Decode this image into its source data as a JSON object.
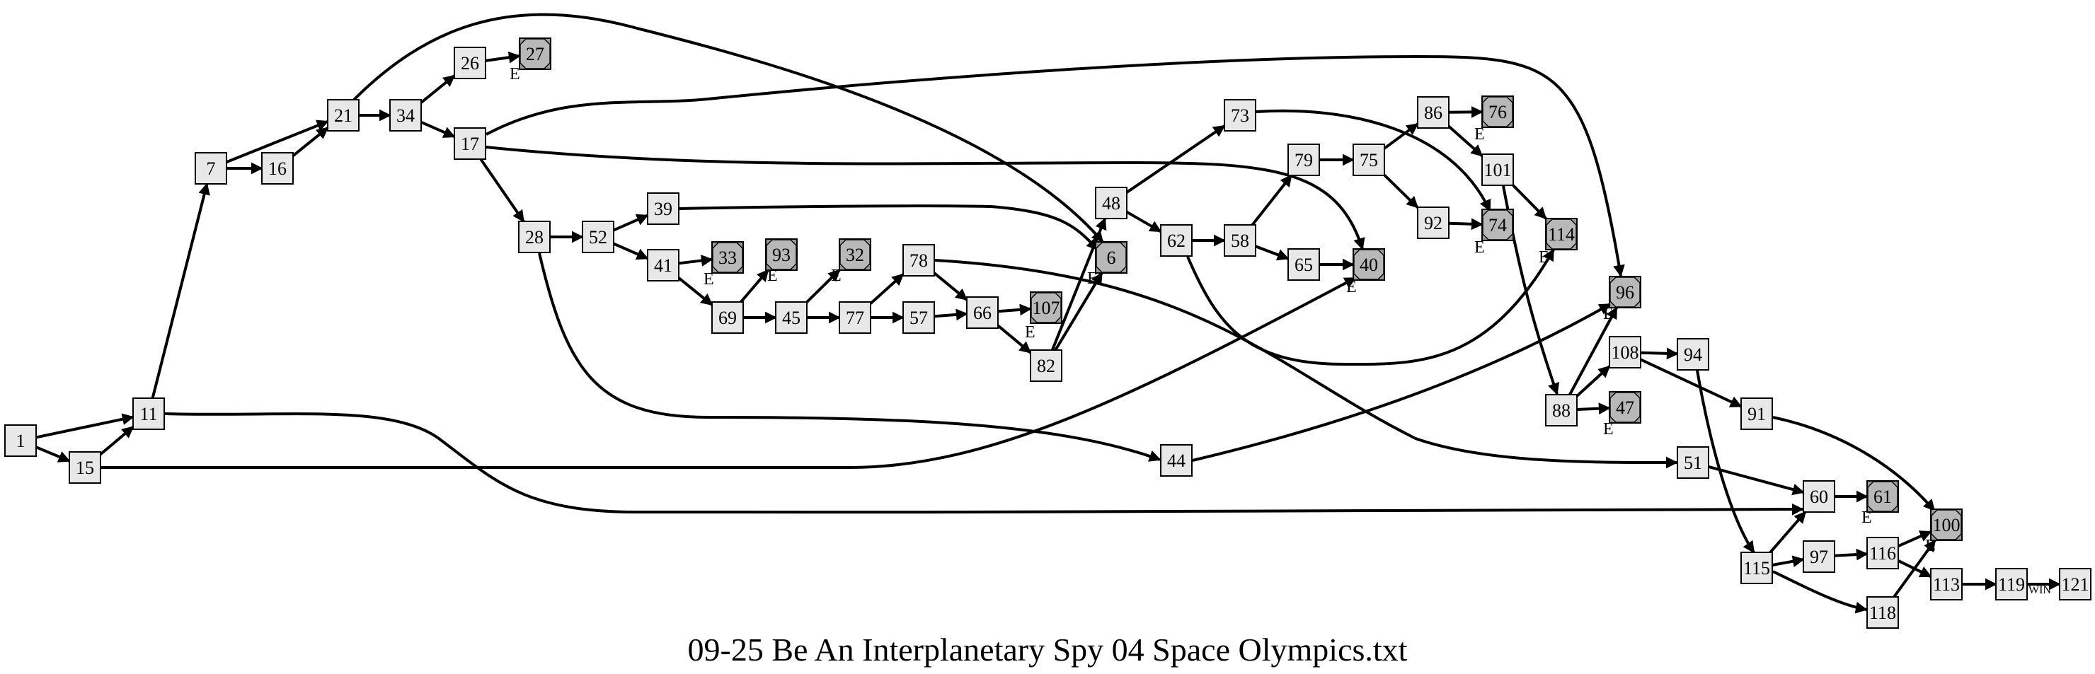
{
  "title": "09-25 Be An Interplanetary Spy 04 Space Olympics.txt",
  "colors": {
    "node_fill": "#e8e8e8",
    "end_fill": "#9a9a9a",
    "end_inner": "#b8b8b8",
    "line": "#000000"
  },
  "nodes": [
    {
      "id": "1",
      "type": "page"
    },
    {
      "id": "15",
      "type": "page"
    },
    {
      "id": "11",
      "type": "page"
    },
    {
      "id": "7",
      "type": "page"
    },
    {
      "id": "16",
      "type": "page"
    },
    {
      "id": "21",
      "type": "page"
    },
    {
      "id": "34",
      "type": "page"
    },
    {
      "id": "26",
      "type": "page"
    },
    {
      "id": "27",
      "type": "end",
      "tag": "E"
    },
    {
      "id": "17",
      "type": "page"
    },
    {
      "id": "28",
      "type": "page"
    },
    {
      "id": "52",
      "type": "page"
    },
    {
      "id": "39",
      "type": "page"
    },
    {
      "id": "41",
      "type": "page"
    },
    {
      "id": "33",
      "type": "end",
      "tag": "E"
    },
    {
      "id": "69",
      "type": "page"
    },
    {
      "id": "93",
      "type": "end",
      "tag": "E"
    },
    {
      "id": "45",
      "type": "page"
    },
    {
      "id": "32",
      "type": "end",
      "tag": "E"
    },
    {
      "id": "77",
      "type": "page"
    },
    {
      "id": "78",
      "type": "page"
    },
    {
      "id": "57",
      "type": "page"
    },
    {
      "id": "66",
      "type": "page"
    },
    {
      "id": "107",
      "type": "end",
      "tag": "E"
    },
    {
      "id": "82",
      "type": "page"
    },
    {
      "id": "6",
      "type": "end",
      "tag": "E"
    },
    {
      "id": "48",
      "type": "page"
    },
    {
      "id": "73",
      "type": "page"
    },
    {
      "id": "62",
      "type": "page"
    },
    {
      "id": "58",
      "type": "page"
    },
    {
      "id": "79",
      "type": "page"
    },
    {
      "id": "75",
      "type": "page"
    },
    {
      "id": "65",
      "type": "page"
    },
    {
      "id": "40",
      "type": "end",
      "tag": "E"
    },
    {
      "id": "86",
      "type": "page"
    },
    {
      "id": "76",
      "type": "end",
      "tag": "E"
    },
    {
      "id": "101",
      "type": "page"
    },
    {
      "id": "92",
      "type": "page"
    },
    {
      "id": "74",
      "type": "end",
      "tag": "E"
    },
    {
      "id": "114",
      "type": "end",
      "tag": "E"
    },
    {
      "id": "96",
      "type": "end",
      "tag": "E"
    },
    {
      "id": "88",
      "type": "page"
    },
    {
      "id": "108",
      "type": "page"
    },
    {
      "id": "47",
      "type": "end",
      "tag": "E"
    },
    {
      "id": "94",
      "type": "page"
    },
    {
      "id": "91",
      "type": "page"
    },
    {
      "id": "44",
      "type": "page"
    },
    {
      "id": "51",
      "type": "page"
    },
    {
      "id": "60",
      "type": "page"
    },
    {
      "id": "61",
      "type": "end",
      "tag": "E"
    },
    {
      "id": "100",
      "type": "end",
      "tag": "E"
    },
    {
      "id": "115",
      "type": "page"
    },
    {
      "id": "97",
      "type": "page"
    },
    {
      "id": "116",
      "type": "page"
    },
    {
      "id": "113",
      "type": "page"
    },
    {
      "id": "118",
      "type": "page"
    },
    {
      "id": "119",
      "type": "page",
      "tag": "WIN"
    },
    {
      "id": "121",
      "type": "page"
    }
  ],
  "edges": [
    [
      "1",
      "11"
    ],
    [
      "1",
      "15"
    ],
    [
      "15",
      "11"
    ],
    [
      "15",
      "40"
    ],
    [
      "11",
      "7"
    ],
    [
      "11",
      "60"
    ],
    [
      "7",
      "21"
    ],
    [
      "7",
      "16"
    ],
    [
      "16",
      "21"
    ],
    [
      "21",
      "34"
    ],
    [
      "21",
      "6"
    ],
    [
      "34",
      "26"
    ],
    [
      "34",
      "17"
    ],
    [
      "26",
      "27"
    ],
    [
      "17",
      "96"
    ],
    [
      "17",
      "40"
    ],
    [
      "17",
      "28"
    ],
    [
      "28",
      "52"
    ],
    [
      "28",
      "44"
    ],
    [
      "52",
      "39"
    ],
    [
      "52",
      "41"
    ],
    [
      "39",
      "6"
    ],
    [
      "41",
      "33"
    ],
    [
      "41",
      "69"
    ],
    [
      "69",
      "93"
    ],
    [
      "69",
      "45"
    ],
    [
      "45",
      "32"
    ],
    [
      "45",
      "77"
    ],
    [
      "77",
      "78"
    ],
    [
      "77",
      "57"
    ],
    [
      "78",
      "66"
    ],
    [
      "78",
      "51"
    ],
    [
      "57",
      "66"
    ],
    [
      "66",
      "107"
    ],
    [
      "66",
      "82"
    ],
    [
      "82",
      "48"
    ],
    [
      "82",
      "6"
    ],
    [
      "48",
      "73"
    ],
    [
      "48",
      "62"
    ],
    [
      "73",
      "74"
    ],
    [
      "62",
      "58"
    ],
    [
      "62",
      "114"
    ],
    [
      "58",
      "79"
    ],
    [
      "58",
      "65"
    ],
    [
      "79",
      "75"
    ],
    [
      "65",
      "40"
    ],
    [
      "75",
      "86"
    ],
    [
      "75",
      "92"
    ],
    [
      "86",
      "76"
    ],
    [
      "86",
      "101"
    ],
    [
      "92",
      "74"
    ],
    [
      "101",
      "114"
    ],
    [
      "101",
      "88"
    ],
    [
      "88",
      "96"
    ],
    [
      "88",
      "108"
    ],
    [
      "88",
      "47"
    ],
    [
      "108",
      "94"
    ],
    [
      "108",
      "91"
    ],
    [
      "94",
      "115"
    ],
    [
      "91",
      "100"
    ],
    [
      "44",
      "96"
    ],
    [
      "51",
      "60"
    ],
    [
      "60",
      "61"
    ],
    [
      "115",
      "60"
    ],
    [
      "115",
      "97"
    ],
    [
      "115",
      "118"
    ],
    [
      "97",
      "116"
    ],
    [
      "116",
      "100"
    ],
    [
      "116",
      "113"
    ],
    [
      "118",
      "100"
    ],
    [
      "113",
      "119"
    ],
    [
      "119",
      "121"
    ]
  ]
}
